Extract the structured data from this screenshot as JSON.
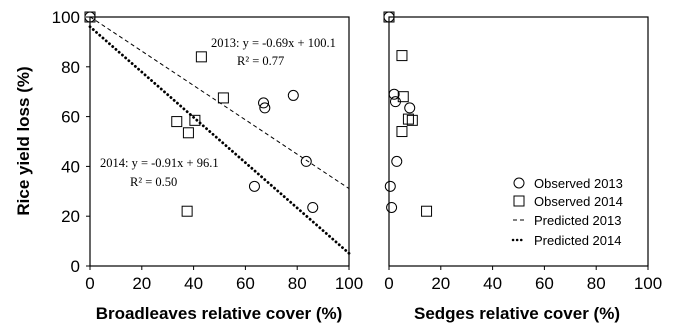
{
  "chart_data": [
    {
      "type": "scatter",
      "ylabel": "Rice yield loss (%)",
      "xlabel": "Broadleaves relative cover (%)",
      "xlim": [
        0,
        100
      ],
      "ylim": [
        0,
        100
      ],
      "xticks": [
        "0",
        "20",
        "40",
        "60",
        "80",
        "100"
      ],
      "yticks": [
        "0",
        "20",
        "40",
        "60",
        "80",
        "100"
      ],
      "series": [
        {
          "name": "Observed 2013",
          "marker": "circle",
          "points": [
            [
              0,
              100
            ],
            [
              63.5,
              32
            ],
            [
              67,
              65.5
            ],
            [
              67.5,
              63.5
            ],
            [
              78.5,
              68.5
            ],
            [
              83.5,
              42
            ],
            [
              86,
              23.5
            ]
          ]
        },
        {
          "name": "Observed 2014",
          "marker": "square",
          "points": [
            [
              0,
              100
            ],
            [
              33.5,
              58
            ],
            [
              37.5,
              22
            ],
            [
              38,
              53.5
            ],
            [
              40.5,
              58.5
            ],
            [
              43,
              84
            ],
            [
              51.5,
              67.5
            ]
          ]
        },
        {
          "name": "Predicted 2013",
          "line": "dashed",
          "slope": -0.69,
          "intercept": 100.1
        },
        {
          "name": "Predicted 2014",
          "line": "dotted",
          "slope": -0.91,
          "intercept": 96.1
        }
      ],
      "annotations": [
        "2013: y = -0.69x + 100.1",
        "R² = 0.77",
        "2014: y = -0.91x + 96.1",
        "R² = 0.50"
      ]
    },
    {
      "type": "scatter",
      "xlabel": "Sedges relative cover (%)",
      "xlim": [
        0,
        100
      ],
      "ylim": [
        0,
        100
      ],
      "xticks": [
        "0",
        "20",
        "40",
        "60",
        "80",
        "100"
      ],
      "series": [
        {
          "name": "Observed 2013",
          "marker": "circle",
          "points": [
            [
              0,
              100
            ],
            [
              0.5,
              32
            ],
            [
              1,
              23.5
            ],
            [
              2,
              69
            ],
            [
              2.5,
              66
            ],
            [
              3,
              42
            ],
            [
              8,
              63.5
            ]
          ]
        },
        {
          "name": "Observed 2014",
          "marker": "square",
          "points": [
            [
              0,
              100
            ],
            [
              5,
              84.5
            ],
            [
              5.5,
              68
            ],
            [
              5,
              54
            ],
            [
              7.5,
              59
            ],
            [
              9,
              58.5
            ],
            [
              14.5,
              22
            ]
          ]
        }
      ]
    }
  ],
  "legend": {
    "placement": "bottom-right",
    "items": [
      {
        "label": "Observed 2013",
        "symbol": "circle"
      },
      {
        "label": "Observed 2014",
        "symbol": "square"
      },
      {
        "label": "Predicted 2013",
        "symbol": "dashed"
      },
      {
        "label": "Predicted 2014",
        "symbol": "dotted"
      }
    ]
  }
}
